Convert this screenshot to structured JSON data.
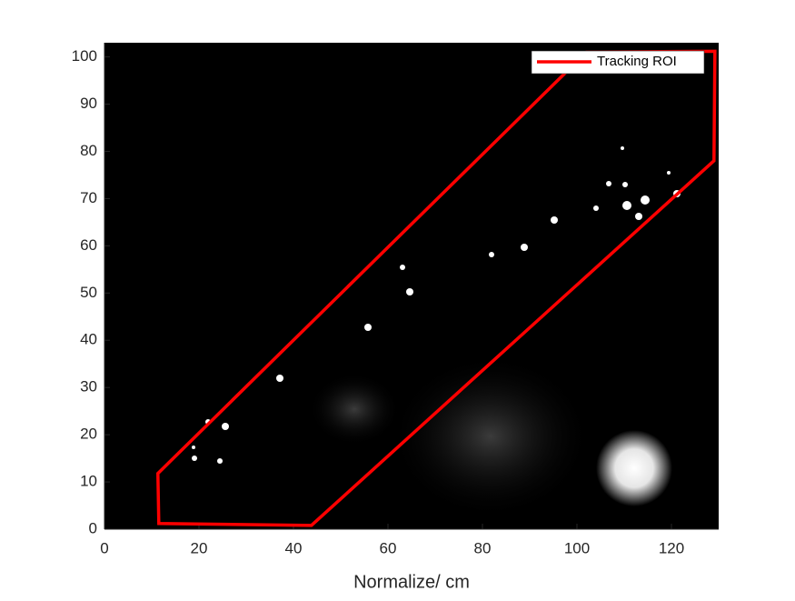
{
  "chart_data": {
    "type": "roi",
    "xlabel": "Normalize/ cm",
    "xlim": [
      0,
      130
    ],
    "ylim": [
      0,
      103
    ],
    "xticks": [
      0,
      20,
      40,
      60,
      80,
      100,
      120
    ],
    "yticks": [
      0,
      10,
      20,
      30,
      40,
      50,
      60,
      70,
      80,
      90,
      100
    ],
    "legend": "upper right",
    "series": [
      {
        "name": "Tracking ROI",
        "color": "#ff0000",
        "x": [
          102,
          129.2,
          129,
          43.8,
          11.5,
          11.3
        ],
        "values": [
          101,
          101.2,
          78,
          0.8,
          1.2,
          11.8
        ]
      }
    ]
  }
}
